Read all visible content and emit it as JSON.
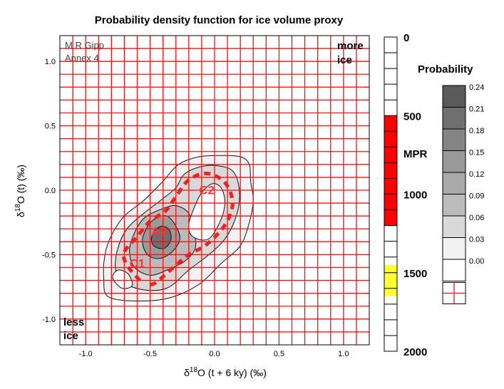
{
  "chart_data": {
    "type": "heatmap",
    "title": "Probability density function for ice volume proxy",
    "xlabel": {
      "prefix": "δ",
      "sup": "18",
      "suffix": "O (t + 6 ky) (‰)"
    },
    "ylabel": {
      "prefix": "δ",
      "sup": "18",
      "suffix": "O (t) (‰)"
    },
    "xlim": [
      -1.2,
      1.2
    ],
    "ylim": [
      -1.2,
      1.2
    ],
    "x_ticks": [
      {
        "value": -1.0,
        "label": "-1.0"
      },
      {
        "value": -0.5,
        "label": "-0.5"
      },
      {
        "value": 0.0,
        "label": "0.0"
      },
      {
        "value": 0.5,
        "label": "0.5"
      },
      {
        "value": 1.0,
        "label": "1.0"
      }
    ],
    "y_ticks": [
      {
        "value": 1.0,
        "label": "1.0"
      },
      {
        "value": 0.5,
        "label": "0.5"
      },
      {
        "value": 0.0,
        "label": "0.0"
      },
      {
        "value": -0.5,
        "label": "-0.5"
      },
      {
        "value": -1.0,
        "label": "-1.0"
      }
    ],
    "grid": true,
    "grid_step": 0.1,
    "grid_color": "#ee1111",
    "annotations": {
      "credit_line1": "M R Gipp",
      "credit_line2": "Annex 4",
      "corner_top_right_line1": "more",
      "corner_top_right_line2": "ice",
      "corner_bottom_left_line1": "less",
      "corner_bottom_left_line2": "ice",
      "labels": [
        {
          "text": "C2",
          "x": -0.06,
          "y": -0.03
        },
        {
          "text": "A2",
          "x": -0.43,
          "y": -0.35
        },
        {
          "text": "C1",
          "x": -0.6,
          "y": -0.6
        }
      ]
    },
    "density_levels": [
      {
        "level": 0.03,
        "color": "#f2f2f2",
        "points": [
          [
            -0.82,
            -0.83
          ],
          [
            -0.55,
            -0.86
          ],
          [
            -0.33,
            -0.83
          ],
          [
            -0.12,
            -0.73
          ],
          [
            0.05,
            -0.57
          ],
          [
            0.2,
            -0.43
          ],
          [
            0.27,
            -0.25
          ],
          [
            0.3,
            -0.08
          ],
          [
            0.28,
            0.07
          ],
          [
            0.27,
            0.2
          ],
          [
            0.2,
            0.26
          ],
          [
            0.05,
            0.27
          ],
          [
            -0.12,
            0.26
          ],
          [
            -0.28,
            0.2
          ],
          [
            -0.4,
            0.07
          ],
          [
            -0.55,
            -0.08
          ],
          [
            -0.7,
            -0.2
          ],
          [
            -0.8,
            -0.35
          ],
          [
            -0.85,
            -0.5
          ],
          [
            -0.86,
            -0.68
          ]
        ]
      },
      {
        "level": 0.06,
        "color": "#d9d9d9",
        "points": [
          [
            -0.73,
            -0.7
          ],
          [
            -0.57,
            -0.77
          ],
          [
            -0.37,
            -0.76
          ],
          [
            -0.2,
            -0.62
          ],
          [
            -0.02,
            -0.48
          ],
          [
            0.1,
            -0.35
          ],
          [
            0.18,
            -0.16
          ],
          [
            0.19,
            0.02
          ],
          [
            0.14,
            0.15
          ],
          [
            0.02,
            0.19
          ],
          [
            -0.12,
            0.18
          ],
          [
            -0.24,
            0.12
          ],
          [
            -0.3,
            0.02
          ],
          [
            -0.42,
            -0.08
          ],
          [
            -0.55,
            -0.18
          ],
          [
            -0.68,
            -0.3
          ],
          [
            -0.75,
            -0.45
          ],
          [
            -0.77,
            -0.6
          ]
        ]
      },
      {
        "level": 0.09,
        "color": "#bbbbbb",
        "points": [
          [
            -0.62,
            -0.6
          ],
          [
            -0.5,
            -0.66
          ],
          [
            -0.37,
            -0.62
          ],
          [
            -0.23,
            -0.55
          ],
          [
            -0.15,
            -0.45
          ],
          [
            -0.16,
            -0.32
          ],
          [
            -0.2,
            -0.18
          ],
          [
            -0.3,
            -0.12
          ],
          [
            -0.42,
            -0.15
          ],
          [
            -0.55,
            -0.22
          ],
          [
            -0.63,
            -0.35
          ],
          [
            -0.66,
            -0.48
          ]
        ]
      },
      {
        "level": 0.15,
        "color": "#999999",
        "points": [
          [
            -0.52,
            -0.5
          ],
          [
            -0.43,
            -0.53
          ],
          [
            -0.33,
            -0.48
          ],
          [
            -0.27,
            -0.38
          ],
          [
            -0.3,
            -0.28
          ],
          [
            -0.37,
            -0.2
          ],
          [
            -0.46,
            -0.22
          ],
          [
            -0.53,
            -0.3
          ],
          [
            -0.56,
            -0.4
          ]
        ]
      },
      {
        "level": 0.21,
        "color": "#6e6e6e",
        "points": [
          [
            -0.46,
            -0.44
          ],
          [
            -0.39,
            -0.45
          ],
          [
            -0.34,
            -0.39
          ],
          [
            -0.35,
            -0.31
          ],
          [
            -0.41,
            -0.28
          ],
          [
            -0.47,
            -0.32
          ],
          [
            -0.49,
            -0.39
          ]
        ]
      }
    ],
    "hole": {
      "color": "#ffffff",
      "points": [
        [
          -0.17,
          -0.36
        ],
        [
          -0.05,
          -0.38
        ],
        [
          0.04,
          -0.25
        ],
        [
          0.08,
          -0.1
        ],
        [
          0.05,
          0.02
        ],
        [
          -0.02,
          0.05
        ],
        [
          -0.1,
          -0.02
        ],
        [
          -0.16,
          -0.14
        ],
        [
          -0.2,
          -0.27
        ]
      ]
    },
    "inner_rings": [
      {
        "points": [
          [
            -0.79,
            -0.68
          ],
          [
            -0.72,
            -0.76
          ],
          [
            -0.64,
            -0.74
          ],
          [
            -0.67,
            -0.65
          ],
          [
            -0.75,
            -0.62
          ]
        ]
      }
    ],
    "mpr_path": {
      "color": "#ee2222",
      "points": [
        [
          -0.58,
          -0.7
        ],
        [
          -0.68,
          -0.58
        ],
        [
          -0.7,
          -0.48
        ],
        [
          -0.6,
          -0.36
        ],
        [
          -0.5,
          -0.24
        ],
        [
          -0.38,
          -0.16
        ],
        [
          -0.3,
          -0.05
        ],
        [
          -0.2,
          0.08
        ],
        [
          -0.06,
          0.13
        ],
        [
          0.08,
          0.06
        ],
        [
          0.14,
          -0.1
        ],
        [
          0.08,
          -0.27
        ],
        [
          -0.06,
          -0.42
        ],
        [
          -0.2,
          -0.5
        ],
        [
          -0.32,
          -0.6
        ],
        [
          -0.46,
          -0.72
        ],
        [
          -0.52,
          -0.73
        ]
      ]
    },
    "mpr_scale": {
      "range": [
        0,
        2000
      ],
      "ticks": [
        {
          "value": 0,
          "label": "0"
        },
        {
          "value": 500,
          "label": "500"
        },
        {
          "value": 1000,
          "label": "1000"
        },
        {
          "value": 1500,
          "label": "1500"
        },
        {
          "value": 2000,
          "label": "2000"
        }
      ],
      "cell_count": 20,
      "label": "MPR",
      "label_at": 740,
      "highlights": [
        {
          "from": 500,
          "to": 1200,
          "color": "#ff0000"
        },
        {
          "from": 1450,
          "to": 1650,
          "color": "#ffff33"
        }
      ]
    },
    "legend": {
      "title": "Probability",
      "placement": "right",
      "entries": [
        {
          "label": "0.24",
          "color": "#5a5a5a"
        },
        {
          "label": "0.21",
          "color": "#6e6e6e"
        },
        {
          "label": "0.18",
          "color": "#848484"
        },
        {
          "label": "0.15",
          "color": "#999999"
        },
        {
          "label": "0.12",
          "color": "#aaaaaa"
        },
        {
          "label": "0.09",
          "color": "#bbbbbb"
        },
        {
          "label": "0.06",
          "color": "#d9d9d9"
        },
        {
          "label": "0.03",
          "color": "#f2f2f2"
        },
        {
          "label": "0.00",
          "color": "#ffffff"
        }
      ]
    }
  }
}
